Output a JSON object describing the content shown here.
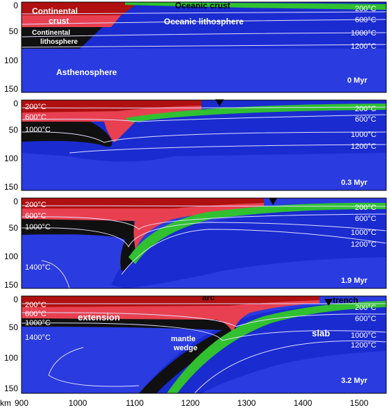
{
  "figure": {
    "y_ticks": [
      "0",
      "50",
      "100",
      "150"
    ],
    "x_axis_prefix": "km",
    "x_ticks": [
      "900",
      "1000",
      "1100",
      "1200",
      "1300",
      "1400",
      "1500"
    ]
  },
  "colors": {
    "asthenosphere": "#2a3be0",
    "lithosphere": "#1a2bd0",
    "continental_crust_upper": "#b01010",
    "continental_crust_lower": "#e84050",
    "continental_lithosphere": "#101010",
    "oceanic_crust": "#30c030",
    "isotherm": "#e0e0ff"
  },
  "panels": [
    {
      "time": "0 Myr",
      "labels": {
        "continental_crust": "Continental\ncrust",
        "oceanic_crust": "Oceanic crust",
        "oceanic_lithosphere": "Oceanic lithosphere",
        "continental_lithosphere": "Continental\nlithosphere",
        "asthenosphere": "Asthenosphere"
      },
      "isotherms": [
        "200°C",
        "600°C",
        "1000°C",
        "1200°C"
      ]
    },
    {
      "time": "0.3 Myr",
      "isotherms_left": [
        "200°C",
        "600°C",
        "1000°C"
      ],
      "isotherms_right": [
        "200°C",
        "600°C",
        "1000°C",
        "1200°C"
      ]
    },
    {
      "time": "1.9 Myr",
      "isotherms_left": [
        "200°C",
        "600°C",
        "1000°C",
        "1400°C"
      ],
      "isotherms_right": [
        "200°C",
        "600°C",
        "1000°C",
        "1200°C"
      ]
    },
    {
      "time": "3.2 Myr",
      "isotherms_left": [
        "200°C",
        "600°C",
        "1000°C",
        "1400°C"
      ],
      "isotherms_right": [
        "200°C",
        "600°C",
        "1000°C",
        "1200°C"
      ],
      "labels": {
        "arc": "arc",
        "trench": "trench",
        "extension": "extension",
        "mantle_wedge": "mantle\nwedge",
        "slab": "slab"
      }
    }
  ]
}
